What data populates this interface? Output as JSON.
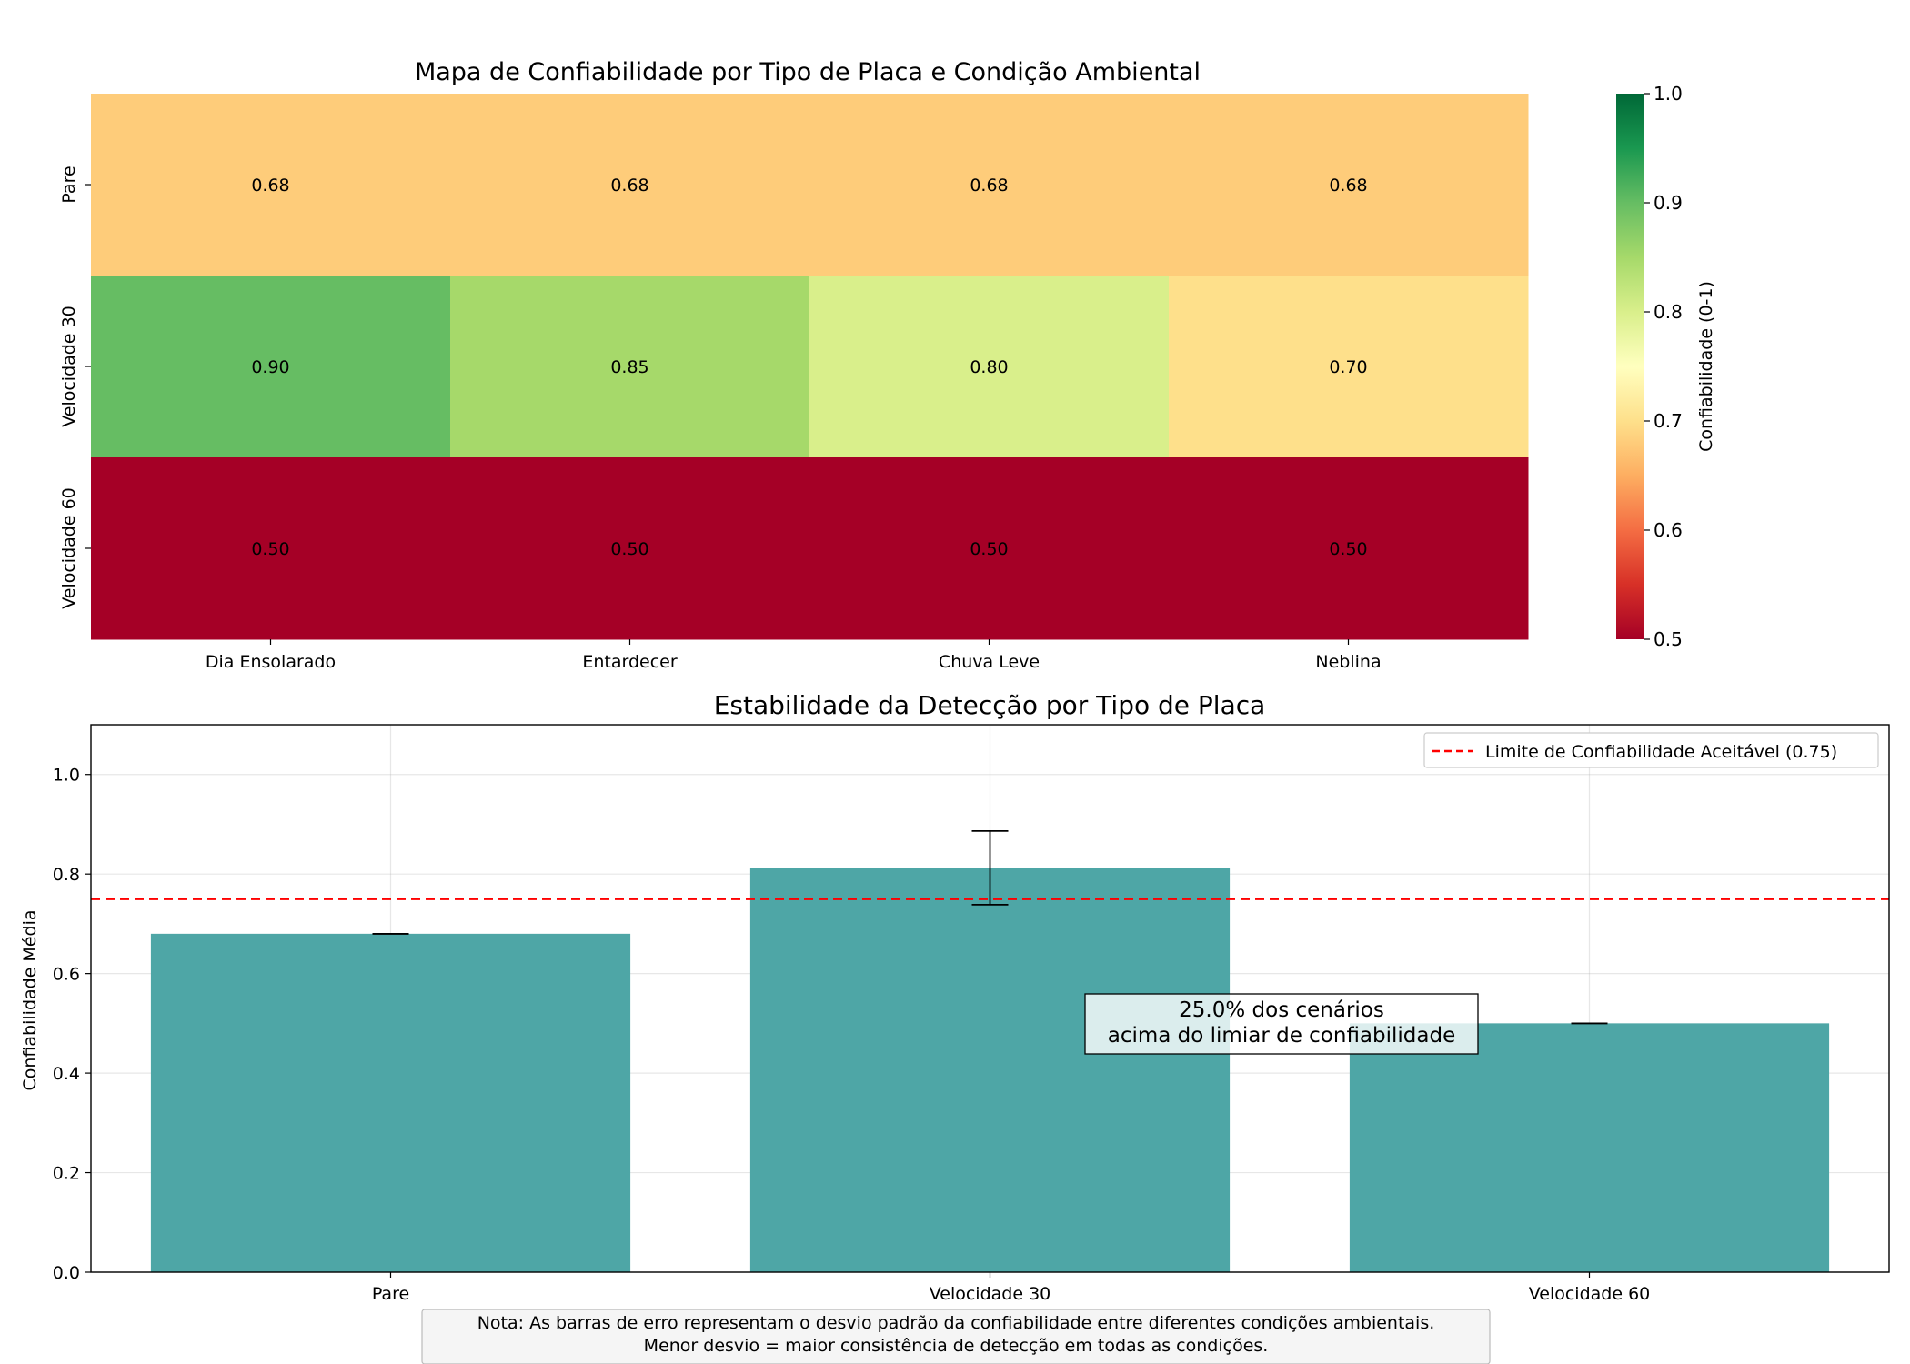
{
  "chart_data": [
    {
      "type": "heatmap",
      "title": "Mapa de Confiabilidade por Tipo de Placa e Condição Ambiental",
      "x_categories": [
        "Dia Ensolarado",
        "Entardecer",
        "Chuva Leve",
        "Neblina"
      ],
      "y_categories": [
        "Pare",
        "Velocidade 30",
        "Velocidade 60"
      ],
      "values": [
        [
          0.68,
          0.68,
          0.68,
          0.68
        ],
        [
          0.9,
          0.85,
          0.8,
          0.7
        ],
        [
          0.5,
          0.5,
          0.5,
          0.5
        ]
      ],
      "colormap": "RdYlGn",
      "colorbar": {
        "label": "Confiabilidade (0-1)",
        "range": [
          0.5,
          1.0
        ],
        "ticks": [
          "0.5",
          "0.6",
          "0.7",
          "0.8",
          "0.9",
          "1.0"
        ]
      }
    },
    {
      "type": "bar",
      "title": "Estabilidade da Detecção por Tipo de Placa",
      "categories": [
        "Pare",
        "Velocidade 30",
        "Velocidade 60"
      ],
      "values": [
        0.68,
        0.8125,
        0.5
      ],
      "errors": [
        0.0,
        0.074,
        0.0
      ],
      "ylabel": "Confiabilidade Média",
      "ylim": [
        0,
        1.1
      ],
      "yticks": [
        "0.0",
        "0.2",
        "0.4",
        "0.6",
        "0.8",
        "1.0"
      ],
      "bar_color": "#4ea6a6",
      "grid": true,
      "threshold": {
        "value": 0.75,
        "label": "Limite de Confiabilidade Aceitável (0.75)",
        "color": "#ff0000"
      },
      "legend_position": "top-right",
      "annotation": {
        "line1": "25.0% dos cenários",
        "line2": "acima do limiar de confiabilidade"
      }
    }
  ],
  "note": {
    "line1": "Nota: As barras de erro representam o desvio padrão da confiabilidade entre diferentes condições ambientais.",
    "line2": "Menor desvio = maior consistência de detecção em todas as condições."
  }
}
